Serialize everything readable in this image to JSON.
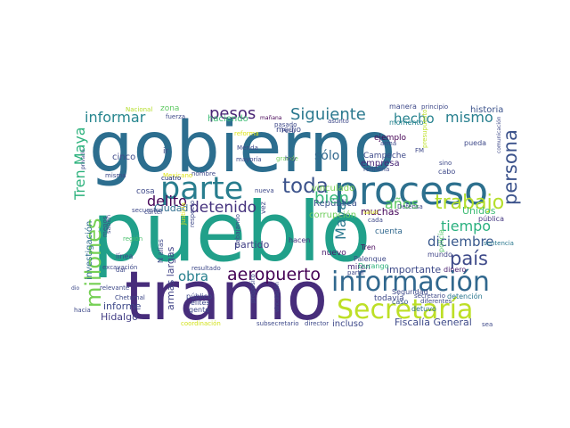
{
  "cloud": {
    "words": [
      {
        "text": "gobierno",
        "color": "#2c6e8f"
      },
      {
        "text": "pueblo",
        "color": "#21a08a"
      },
      {
        "text": "tramo",
        "color": "#472d7b"
      },
      {
        "text": "proceso",
        "color": "#2d708e"
      },
      {
        "text": "parte",
        "color": "#287d8e"
      },
      {
        "text": "información",
        "color": "#31688e"
      },
      {
        "text": "Secretaría",
        "color": "#bddf26"
      },
      {
        "text": "millones",
        "color": "#75d054"
      },
      {
        "text": "trabajo",
        "color": "#b5de2b"
      },
      {
        "text": "toda",
        "color": "#3b528b"
      },
      {
        "text": "aeropuerto",
        "color": "#440154"
      },
      {
        "text": "país",
        "color": "#3e4a89"
      },
      {
        "text": "persona",
        "color": "#3b528b"
      },
      {
        "text": "Siguiente",
        "color": "#2a788e"
      },
      {
        "text": "informar",
        "color": "#25858e"
      },
      {
        "text": "Maya",
        "color": "#2a788e"
      },
      {
        "text": "Tren Maya",
        "color": "#2db27d"
      },
      {
        "text": "pesos",
        "color": "#482475"
      },
      {
        "text": "detenido",
        "color": "#46337e"
      },
      {
        "text": "delito",
        "color": "#450457"
      },
      {
        "text": "mismo",
        "color": "#277f8e"
      },
      {
        "text": "hecho",
        "color": "#26828e"
      },
      {
        "text": "bien",
        "color": "#35b779"
      },
      {
        "text": "tiempo",
        "color": "#2ab07f"
      },
      {
        "text": "diciembre",
        "color": "#38588c"
      },
      {
        "text": "años",
        "color": "#5ec962"
      },
      {
        "text": "obra",
        "color": "#27808e"
      },
      {
        "text": "Fiscalía General",
        "color": "#3e4a89"
      },
      {
        "text": "sólo",
        "color": "#31688e"
      },
      {
        "text": "Hidalgo",
        "color": "#433e85"
      },
      {
        "text": "informe",
        "color": "#3e4989"
      },
      {
        "text": "partido",
        "color": "#424086"
      },
      {
        "text": "armas largas",
        "color": "#414487"
      },
      {
        "text": "muchas",
        "color": "#450559"
      },
      {
        "text": "República",
        "color": "#3b528b"
      },
      {
        "text": "corrupción",
        "color": "#6ccd5a"
      },
      {
        "text": "Unidos",
        "color": "#3dbc74"
      },
      {
        "text": "importante",
        "color": "#3e4a89"
      },
      {
        "text": "incluso",
        "color": "#3e4989"
      },
      {
        "text": "cinco",
        "color": "#3e4a89"
      },
      {
        "text": "Ciudad",
        "color": "#2e6d8e"
      },
      {
        "text": "investigación",
        "color": "#2e6e8e"
      },
      {
        "text": "haciendo",
        "color": "#3dbc74"
      },
      {
        "text": "medio",
        "color": "#3e4989"
      },
      {
        "text": "ejemplo",
        "color": "#440154"
      },
      {
        "text": "empresa",
        "color": "#482677"
      },
      {
        "text": "momento",
        "color": "#26828e"
      },
      {
        "text": "Campeche",
        "color": "#3e4a89"
      },
      {
        "text": "vinculado",
        "color": "#7ad151"
      },
      {
        "text": "historia",
        "color": "#3b528b"
      },
      {
        "text": "sentencia",
        "color": "#2a788e"
      },
      {
        "text": "cuenta",
        "color": "#31688e"
      },
      {
        "text": "hacen",
        "color": "#46327e"
      },
      {
        "text": "miren",
        "color": "#482878"
      },
      {
        "text": "nuevo",
        "color": "#481a6c"
      },
      {
        "text": "Tren",
        "color": "#450559"
      },
      {
        "text": "detuvo",
        "color": "#2d708e"
      },
      {
        "text": "caso",
        "color": "#38588c"
      },
      {
        "text": "Palenque",
        "color": "#3e4989"
      },
      {
        "text": "Durango",
        "color": "#2fb47c"
      },
      {
        "text": "dinero",
        "color": "#482071"
      },
      {
        "text": "mundo",
        "color": "#404688"
      },
      {
        "text": "pública",
        "color": "#453781"
      },
      {
        "text": "policía",
        "color": "#54c568"
      },
      {
        "text": "detención",
        "color": "#2a768e"
      },
      {
        "text": "Seguridad",
        "color": "#3e4989"
      },
      {
        "text": "todavía",
        "color": "#3e4a89"
      },
      {
        "text": "director",
        "color": "#3e4989"
      },
      {
        "text": "subsecretario",
        "color": "#3e4989"
      },
      {
        "text": "coordinación",
        "color": "#d2e21b"
      },
      {
        "text": "gente",
        "color": "#3e4989"
      },
      {
        "text": "público",
        "color": "#3e4989"
      },
      {
        "text": "élites",
        "color": "#3e4989"
      },
      {
        "text": "relevante",
        "color": "#3e4989"
      },
      {
        "text": "excavación",
        "color": "#3e4989"
      },
      {
        "text": "región",
        "color": "#4ac16d"
      },
      {
        "text": "resultado",
        "color": "#3e4989"
      },
      {
        "text": "dar",
        "color": "#3e4989"
      },
      {
        "text": "línea",
        "color": "#3e4989"
      },
      {
        "text": "Chetumal",
        "color": "#3e4989"
      },
      {
        "text": "hacia",
        "color": "#3e4989"
      },
      {
        "text": "fuerza",
        "color": "#3e4989"
      },
      {
        "text": "zona",
        "color": "#5ec962"
      },
      {
        "text": "Nacional",
        "color": "#b5de2b"
      },
      {
        "text": "mañana",
        "color": "#440154"
      },
      {
        "text": "asunto",
        "color": "#3e4989"
      },
      {
        "text": "pasado",
        "color": "#3e4989"
      },
      {
        "text": "reforma",
        "color": "#dde318"
      },
      {
        "text": "Perú",
        "color": "#3e4989"
      },
      {
        "text": "Mérida",
        "color": "#3e4989"
      },
      {
        "text": "mayoría",
        "color": "#3e4989"
      },
      {
        "text": "grande",
        "color": "#73d056"
      },
      {
        "text": "nombre",
        "color": "#3e4989"
      },
      {
        "text": "nueva",
        "color": "#3e4989"
      },
      {
        "text": "misma",
        "color": "#3e4989"
      },
      {
        "text": "Mexicano",
        "color": "#dde318"
      },
      {
        "text": "cosa",
        "color": "#3e4989"
      },
      {
        "text": "secuestro",
        "color": "#3e4989"
      },
      {
        "text": "N alias",
        "color": "#3e4989"
      },
      {
        "text": "Justicia",
        "color": "#dde318"
      },
      {
        "text": "respecto",
        "color": "#3e4989"
      },
      {
        "text": "salud",
        "color": "#dde318"
      },
      {
        "text": "cada",
        "color": "#3e4989"
      },
      {
        "text": "diferentes",
        "color": "#3e4989"
      },
      {
        "text": "partir",
        "color": "#3e4989"
      },
      {
        "text": "secretario",
        "color": "#3e4989"
      },
      {
        "text": "refinería",
        "color": "#3e4989"
      },
      {
        "text": "manera",
        "color": "#3e4989"
      },
      {
        "text": "principio",
        "color": "#3e4989"
      },
      {
        "text": "pueda",
        "color": "#3e4989"
      },
      {
        "text": "cabo",
        "color": "#3e4989"
      },
      {
        "text": "arma",
        "color": "#3e4989"
      },
      {
        "text": "sino",
        "color": "#3e4989"
      },
      {
        "text": "FM",
        "color": "#3e4989"
      },
      {
        "text": "Defensa",
        "color": "#3e4989"
      },
      {
        "text": "saben",
        "color": "#3e4989"
      },
      {
        "text": "cártel",
        "color": "#3e4989"
      },
      {
        "text": "cuatro",
        "color": "#3e4989"
      },
      {
        "text": "menos",
        "color": "#3e4989"
      },
      {
        "text": "vinculación",
        "color": "#3e4989"
      },
      {
        "text": "propósito",
        "color": "#3e4989"
      },
      {
        "text": "trabajando",
        "color": "#3e4989"
      },
      {
        "text": "presupuesto",
        "color": "#bddf26"
      },
      {
        "text": "comunicación",
        "color": "#3e4989"
      },
      {
        "text": "privado",
        "color": "#3e4989"
      },
      {
        "text": "hoy",
        "color": "#3e4989"
      },
      {
        "text": "vez",
        "color": "#3e4989"
      },
      {
        "text": "ir",
        "color": "#3e4989"
      },
      {
        "text": "dio",
        "color": "#3e4989"
      },
      {
        "text": "cuatro",
        "color": "#3e4989"
      },
      {
        "text": "sea",
        "color": "#3e4989"
      }
    ]
  }
}
